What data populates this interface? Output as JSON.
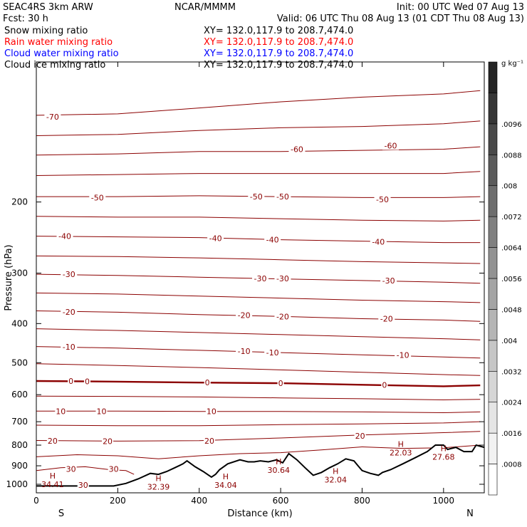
{
  "header": {
    "model": "SEAC4RS   3km ARW",
    "center": "NCAR/MMMM",
    "init": "Init: 00 UTC Wed 07 Aug 13",
    "fcst": "Fcst:    30 h",
    "valid": "Valid: 06 UTC Thu 08 Aug 13 (01 CDT Thu 08 Aug 13)",
    "fields": [
      {
        "name": "Snow mixing ratio",
        "xy": "XY= 132.0,117.9 to 208.7,474.0",
        "color": "#000000"
      },
      {
        "name": "Rain water mixing ratio",
        "xy": "XY= 132.0,117.9 to 208.7,474.0",
        "color": "#ff0000"
      },
      {
        "name": "Cloud water mixing ratio",
        "xy": "XY= 132.0,117.9 to 208.7,474.0",
        "color": "#0000ff"
      },
      {
        "name": "Cloud ice mixing ratio",
        "xy": "XY= 132.0,117.9 to 208.7,474.0",
        "color": "#000000"
      }
    ]
  },
  "chart_data": {
    "type": "line",
    "xlabel": "Distance (km)",
    "ylabel": "Pressure (hPa)",
    "xlim": [
      0,
      1100
    ],
    "ylim": [
      1050,
      90
    ],
    "y_scale": "log",
    "x_ticks": [
      0,
      200,
      400,
      600,
      800,
      1000
    ],
    "y_ticks": [
      200,
      300,
      400,
      500,
      600,
      700,
      800,
      900,
      1000
    ],
    "x_end_labels": {
      "left": "S",
      "right": "N"
    },
    "contour_color": "#8b0000",
    "zero_contour_color": "#8b0000",
    "isotherm_levels": [
      -70,
      -65,
      -60,
      -55,
      -50,
      -45,
      -40,
      -35,
      -30,
      -25,
      -20,
      -15,
      -10,
      -5,
      0,
      5,
      10,
      15,
      20,
      25,
      30
    ],
    "isotherms": [
      {
        "level": -70,
        "points": [
          [
            0,
            122
          ],
          [
            200,
            121
          ],
          [
            400,
            117
          ],
          [
            600,
            113
          ],
          [
            800,
            110
          ],
          [
            1000,
            108
          ],
          [
            1090,
            106
          ]
        ]
      },
      {
        "level": -65,
        "points": [
          [
            0,
            137
          ],
          [
            200,
            136
          ],
          [
            400,
            133
          ],
          [
            600,
            131
          ],
          [
            800,
            130
          ],
          [
            1000,
            128
          ],
          [
            1090,
            126
          ]
        ]
      },
      {
        "level": -60,
        "points": [
          [
            0,
            153
          ],
          [
            200,
            152
          ],
          [
            400,
            150
          ],
          [
            600,
            150
          ],
          [
            800,
            149
          ],
          [
            1000,
            148
          ],
          [
            1090,
            146
          ]
        ]
      },
      {
        "level": -55,
        "points": [
          [
            0,
            172
          ],
          [
            200,
            171
          ],
          [
            400,
            170
          ],
          [
            600,
            170
          ],
          [
            800,
            170
          ],
          [
            1000,
            170
          ],
          [
            1090,
            168
          ]
        ]
      },
      {
        "level": -50,
        "points": [
          [
            0,
            194
          ],
          [
            200,
            194
          ],
          [
            400,
            193
          ],
          [
            600,
            194
          ],
          [
            800,
            195
          ],
          [
            1000,
            195
          ],
          [
            1090,
            194
          ]
        ]
      },
      {
        "level": -45,
        "points": [
          [
            0,
            217
          ],
          [
            200,
            218
          ],
          [
            400,
            218
          ],
          [
            600,
            220
          ],
          [
            800,
            222
          ],
          [
            1000,
            223
          ],
          [
            1090,
            222
          ]
        ]
      },
      {
        "level": -40,
        "points": [
          [
            0,
            243
          ],
          [
            200,
            244
          ],
          [
            400,
            245
          ],
          [
            600,
            248
          ],
          [
            800,
            250
          ],
          [
            1000,
            252
          ],
          [
            1090,
            252
          ]
        ]
      },
      {
        "level": -35,
        "points": [
          [
            0,
            272
          ],
          [
            200,
            273
          ],
          [
            400,
            275
          ],
          [
            600,
            278
          ],
          [
            800,
            281
          ],
          [
            1000,
            283
          ],
          [
            1090,
            284
          ]
        ]
      },
      {
        "level": -30,
        "points": [
          [
            0,
            302
          ],
          [
            200,
            304
          ],
          [
            400,
            307
          ],
          [
            600,
            310
          ],
          [
            800,
            313
          ],
          [
            1000,
            316
          ],
          [
            1090,
            318
          ]
        ]
      },
      {
        "level": -25,
        "points": [
          [
            0,
            336
          ],
          [
            200,
            338
          ],
          [
            400,
            342
          ],
          [
            600,
            346
          ],
          [
            800,
            350
          ],
          [
            1000,
            353
          ],
          [
            1090,
            355
          ]
        ]
      },
      {
        "level": -20,
        "points": [
          [
            0,
            372
          ],
          [
            200,
            375
          ],
          [
            400,
            380
          ],
          [
            600,
            384
          ],
          [
            800,
            389
          ],
          [
            1000,
            392
          ],
          [
            1090,
            395
          ]
        ]
      },
      {
        "level": -15,
        "points": [
          [
            0,
            412
          ],
          [
            200,
            416
          ],
          [
            400,
            421
          ],
          [
            600,
            426
          ],
          [
            800,
            431
          ],
          [
            1000,
            436
          ],
          [
            1090,
            439
          ]
        ]
      },
      {
        "level": -10,
        "points": [
          [
            0,
            456
          ],
          [
            200,
            460
          ],
          [
            400,
            466
          ],
          [
            600,
            472
          ],
          [
            800,
            478
          ],
          [
            1000,
            484
          ],
          [
            1090,
            487
          ]
        ]
      },
      {
        "level": -5,
        "points": [
          [
            0,
            503
          ],
          [
            200,
            508
          ],
          [
            400,
            514
          ],
          [
            600,
            521
          ],
          [
            800,
            528
          ],
          [
            1000,
            535
          ],
          [
            1090,
            538
          ]
        ]
      },
      {
        "level": 0,
        "points": [
          [
            0,
            555
          ],
          [
            200,
            557
          ],
          [
            400,
            560
          ],
          [
            600,
            562
          ],
          [
            800,
            567
          ],
          [
            1000,
            572
          ],
          [
            1090,
            569
          ]
        ]
      },
      {
        "level": 5,
        "points": [
          [
            0,
            605
          ],
          [
            200,
            606
          ],
          [
            400,
            608
          ],
          [
            600,
            611
          ],
          [
            800,
            614
          ],
          [
            1000,
            618
          ],
          [
            1090,
            616
          ]
        ]
      },
      {
        "level": 10,
        "points": [
          [
            0,
            659
          ],
          [
            200,
            659
          ],
          [
            400,
            660
          ],
          [
            600,
            660
          ],
          [
            800,
            662
          ],
          [
            1000,
            665
          ],
          [
            1090,
            662
          ]
        ]
      },
      {
        "level": 15,
        "points": [
          [
            0,
            714
          ],
          [
            200,
            716
          ],
          [
            400,
            716
          ],
          [
            600,
            712
          ],
          [
            800,
            709
          ],
          [
            1000,
            705
          ],
          [
            1090,
            700
          ]
        ]
      },
      {
        "level": 20,
        "points": [
          [
            0,
            779
          ],
          [
            200,
            782
          ],
          [
            400,
            780
          ],
          [
            600,
            768
          ],
          [
            800,
            755
          ],
          [
            1000,
            745
          ],
          [
            1090,
            740
          ]
        ]
      },
      {
        "level": 25,
        "points": [
          [
            0,
            855
          ],
          [
            100,
            845
          ],
          [
            200,
            850
          ],
          [
            300,
            865
          ],
          [
            400,
            850
          ],
          [
            500,
            840
          ],
          [
            600,
            835
          ],
          [
            700,
            822
          ],
          [
            800,
            808
          ],
          [
            900,
            815
          ],
          [
            1000,
            812
          ],
          [
            1090,
            800
          ]
        ]
      },
      {
        "level": 30,
        "points": [
          [
            0,
            925
          ],
          [
            60,
            910
          ],
          [
            120,
            905
          ],
          [
            180,
            920
          ],
          [
            220,
            925
          ],
          [
            240,
            945
          ]
        ]
      }
    ],
    "contour_labels": [
      {
        "text": "-70",
        "x": 40,
        "y": 123
      },
      {
        "text": "-60",
        "x": 640,
        "y": 148
      },
      {
        "text": "-60",
        "x": 870,
        "y": 145
      },
      {
        "text": "-50",
        "x": 150,
        "y": 195
      },
      {
        "text": "-50",
        "x": 540,
        "y": 194
      },
      {
        "text": "-50",
        "x": 605,
        "y": 194
      },
      {
        "text": "-50",
        "x": 850,
        "y": 197
      },
      {
        "text": "-40",
        "x": 70,
        "y": 243
      },
      {
        "text": "-40",
        "x": 440,
        "y": 246
      },
      {
        "text": "-40",
        "x": 580,
        "y": 248
      },
      {
        "text": "-40",
        "x": 840,
        "y": 251
      },
      {
        "text": "-30",
        "x": 80,
        "y": 302
      },
      {
        "text": "-30",
        "x": 550,
        "y": 309
      },
      {
        "text": "-30",
        "x": 605,
        "y": 309
      },
      {
        "text": "-30",
        "x": 865,
        "y": 313
      },
      {
        "text": "-20",
        "x": 80,
        "y": 374
      },
      {
        "text": "-20",
        "x": 510,
        "y": 381
      },
      {
        "text": "-20",
        "x": 605,
        "y": 384
      },
      {
        "text": "-20",
        "x": 860,
        "y": 389
      },
      {
        "text": "-10",
        "x": 80,
        "y": 457
      },
      {
        "text": "-10",
        "x": 510,
        "y": 468
      },
      {
        "text": "-10",
        "x": 580,
        "y": 472
      },
      {
        "text": "-10",
        "x": 900,
        "y": 479
      },
      {
        "text": "0",
        "x": 85,
        "y": 555
      },
      {
        "text": "0",
        "x": 125,
        "y": 556
      },
      {
        "text": "0",
        "x": 420,
        "y": 560
      },
      {
        "text": "0",
        "x": 600,
        "y": 562
      },
      {
        "text": "0",
        "x": 855,
        "y": 567
      },
      {
        "text": "10",
        "x": 60,
        "y": 659
      },
      {
        "text": "10",
        "x": 160,
        "y": 659
      },
      {
        "text": "10",
        "x": 430,
        "y": 660
      },
      {
        "text": "20",
        "x": 40,
        "y": 780
      },
      {
        "text": "20",
        "x": 175,
        "y": 782
      },
      {
        "text": "20",
        "x": 425,
        "y": 780
      },
      {
        "text": "20",
        "x": 795,
        "y": 758
      },
      {
        "text": "30",
        "x": 85,
        "y": 917
      },
      {
        "text": "30",
        "x": 190,
        "y": 917
      },
      {
        "text": "30",
        "x": 115,
        "y": 1005
      }
    ],
    "surface_points": [
      [
        0,
        1010
      ],
      [
        190,
        1010
      ],
      [
        220,
        995
      ],
      [
        250,
        970
      ],
      [
        280,
        940
      ],
      [
        300,
        945
      ],
      [
        320,
        930
      ],
      [
        340,
        910
      ],
      [
        360,
        890
      ],
      [
        370,
        875
      ],
      [
        390,
        905
      ],
      [
        410,
        930
      ],
      [
        420,
        945
      ],
      [
        430,
        960
      ],
      [
        440,
        945
      ],
      [
        450,
        920
      ],
      [
        470,
        890
      ],
      [
        500,
        870
      ],
      [
        520,
        880
      ],
      [
        535,
        880
      ],
      [
        550,
        875
      ],
      [
        570,
        880
      ],
      [
        590,
        870
      ],
      [
        605,
        885
      ],
      [
        620,
        840
      ],
      [
        640,
        870
      ],
      [
        660,
        910
      ],
      [
        680,
        950
      ],
      [
        700,
        935
      ],
      [
        720,
        910
      ],
      [
        740,
        890
      ],
      [
        760,
        865
      ],
      [
        780,
        875
      ],
      [
        790,
        900
      ],
      [
        800,
        925
      ],
      [
        820,
        940
      ],
      [
        840,
        950
      ],
      [
        850,
        935
      ],
      [
        870,
        920
      ],
      [
        900,
        890
      ],
      [
        930,
        860
      ],
      [
        960,
        830
      ],
      [
        980,
        800
      ],
      [
        1000,
        800
      ],
      [
        1010,
        820
      ],
      [
        1030,
        810
      ],
      [
        1050,
        830
      ],
      [
        1070,
        830
      ],
      [
        1080,
        800
      ],
      [
        1090,
        805
      ],
      [
        1100,
        810
      ]
    ],
    "extrema": [
      {
        "type": "H",
        "value": "34.41",
        "x": 40,
        "y": 975
      },
      {
        "type": "H",
        "value": "32.39",
        "x": 300,
        "y": 990
      },
      {
        "type": "H",
        "value": "34.04",
        "x": 465,
        "y": 980
      },
      {
        "type": "H",
        "value": "30.64",
        "x": 595,
        "y": 900
      },
      {
        "type": "H",
        "value": "32.04",
        "x": 735,
        "y": 950
      },
      {
        "type": "H",
        "value": "22.03",
        "x": 895,
        "y": 815
      },
      {
        "type": "H",
        "value": "27.68",
        "x": 1000,
        "y": 835
      }
    ],
    "colorbar": {
      "unit": "g kg⁻¹",
      "levels": [
        "0",
        ".0008",
        ".0016",
        ".0024",
        ".0032",
        ".004",
        ".0048",
        ".0056",
        ".0064",
        ".0072",
        ".008",
        ".0088",
        ".0096"
      ],
      "colors": [
        "#ffffff",
        "#f2f2f2",
        "#e5e5e5",
        "#d6d6d6",
        "#c6c6c6",
        "#b5b5b5",
        "#a4a4a4",
        "#929292",
        "#808080",
        "#6e6e6e",
        "#5b5b5b",
        "#494949",
        "#363636",
        "#242424"
      ]
    }
  }
}
